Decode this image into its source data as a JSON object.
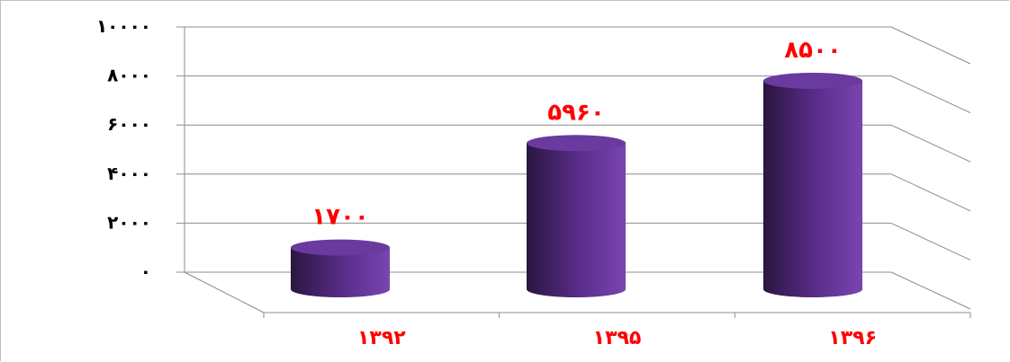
{
  "chart_data": {
    "type": "bar",
    "style": "3d-cylinder",
    "categories": [
      "۱۳۹۲",
      "۱۳۹۵",
      "۱۳۹۶"
    ],
    "values": [
      1700,
      5960,
      8500
    ],
    "value_labels": [
      "۱۷۰۰",
      "۵۹۶۰",
      "۸۵۰۰"
    ],
    "yticks": [
      0,
      2000,
      4000,
      6000,
      8000,
      10000
    ],
    "ytick_labels": [
      "۰",
      "۲۰۰۰",
      "۴۰۰۰",
      "۶۰۰۰",
      "۸۰۰۰",
      "۱۰۰۰۰"
    ],
    "ylim": [
      0,
      10000
    ],
    "grid": true,
    "legend": "none",
    "title": "",
    "xlabel": "",
    "ylabel": ""
  },
  "colors": {
    "bar_dark": "#2a1640",
    "bar_mid": "#5b2d8c",
    "bar_light": "#7a45b0",
    "bar_top": "#6a3a9e",
    "label": "#ff0000",
    "grid": "#8c8c8c",
    "frame": "#bfbfbf"
  }
}
